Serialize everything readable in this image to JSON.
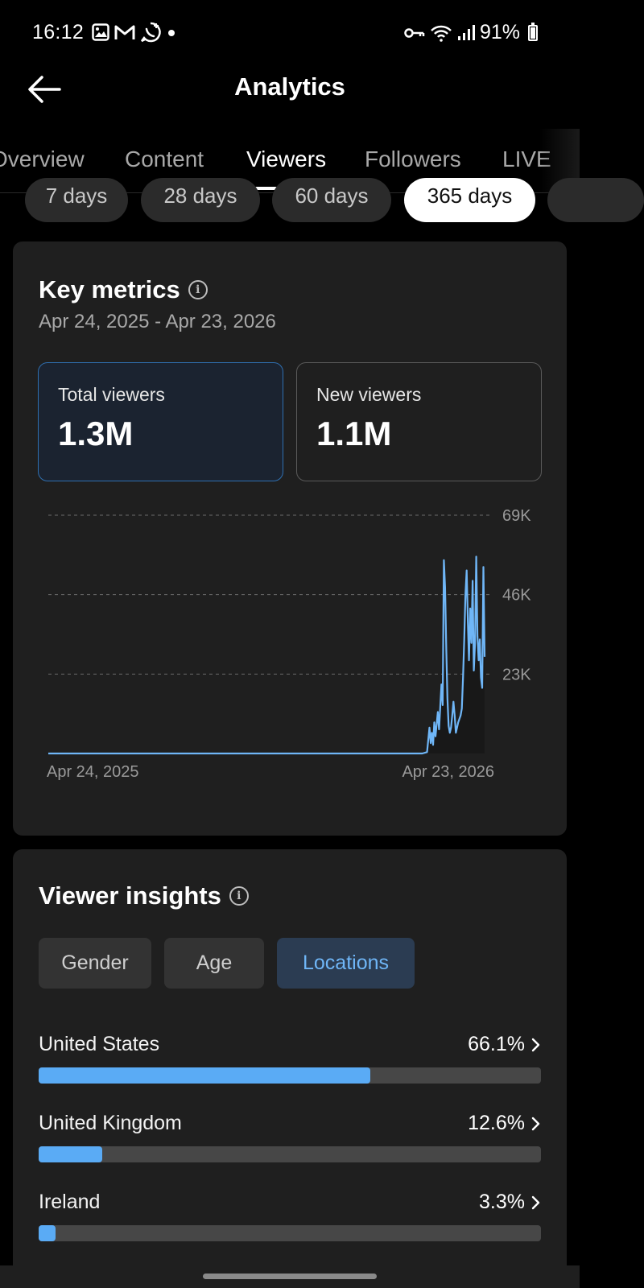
{
  "status_bar": {
    "time": "16:12",
    "battery": "91%",
    "icons_left": [
      "gallery-icon",
      "gmail-icon",
      "whatsapp-icon",
      "dot-icon"
    ],
    "icons_right": [
      "key-icon",
      "wifi-icon",
      "signal-icon",
      "battery-icon"
    ]
  },
  "header": {
    "title": "Analytics"
  },
  "tabs": [
    {
      "label": "Overview",
      "active": false
    },
    {
      "label": "Content",
      "active": false
    },
    {
      "label": "Viewers",
      "active": true
    },
    {
      "label": "Followers",
      "active": false
    },
    {
      "label": "LIVE",
      "active": false
    }
  ],
  "periods": [
    {
      "label": "7 days",
      "active": false
    },
    {
      "label": "28 days",
      "active": false
    },
    {
      "label": "60 days",
      "active": false
    },
    {
      "label": "365 days",
      "active": true
    }
  ],
  "key_metrics": {
    "title": "Key metrics",
    "date_range": "Apr 24, 2025 - Apr 23, 2026",
    "total_viewers": {
      "label": "Total viewers",
      "value": "1.3M"
    },
    "new_viewers": {
      "label": "New viewers",
      "value": "1.1M"
    }
  },
  "chart_data": {
    "type": "line",
    "title": "Total viewers",
    "x_start_label": "Apr 24, 2025",
    "x_end_label": "Apr 23, 2026",
    "y_ticks": [
      "69K",
      "46K",
      "23K"
    ],
    "ylim": [
      0,
      69000
    ],
    "x_unit": "day_index_of_365",
    "series": [
      {
        "name": "Total viewers",
        "points": [
          [
            0,
            0
          ],
          [
            312,
            0
          ],
          [
            316,
            400
          ],
          [
            318,
            7500
          ],
          [
            319,
            3000
          ],
          [
            320,
            6000
          ],
          [
            321,
            2500
          ],
          [
            322,
            9000
          ],
          [
            323,
            5000
          ],
          [
            325,
            12000
          ],
          [
            326,
            7000
          ],
          [
            328,
            20000
          ],
          [
            329,
            14000
          ],
          [
            330,
            56000
          ],
          [
            331,
            48000
          ],
          [
            332,
            30000
          ],
          [
            333,
            16000
          ],
          [
            334,
            8000
          ],
          [
            335,
            6000
          ],
          [
            336,
            7500
          ],
          [
            337,
            11000
          ],
          [
            338,
            15000
          ],
          [
            339,
            11000
          ],
          [
            340,
            6000
          ],
          [
            342,
            9000
          ],
          [
            344,
            11000
          ],
          [
            345,
            13000
          ],
          [
            346,
            22000
          ],
          [
            347,
            33000
          ],
          [
            348,
            46000
          ],
          [
            349,
            53000
          ],
          [
            350,
            38000
          ],
          [
            351,
            27000
          ],
          [
            352,
            42000
          ],
          [
            353,
            32000
          ],
          [
            354,
            50000
          ],
          [
            355,
            24000
          ],
          [
            356,
            32000
          ],
          [
            357,
            57000
          ],
          [
            358,
            34000
          ],
          [
            359,
            27000
          ],
          [
            360,
            33000
          ],
          [
            361,
            22000
          ],
          [
            362,
            19000
          ],
          [
            363,
            54000
          ],
          [
            364,
            28000
          ]
        ]
      }
    ],
    "color": "#6fb6f7"
  },
  "viewer_insights": {
    "title": "Viewer insights",
    "filters": [
      {
        "label": "Gender",
        "active": false
      },
      {
        "label": "Age",
        "active": false
      },
      {
        "label": "Locations",
        "active": true
      }
    ],
    "locations": [
      {
        "name": "United States",
        "percent_label": "66.1%",
        "value": 0.661
      },
      {
        "name": "United Kingdom",
        "percent_label": "12.6%",
        "value": 0.126
      },
      {
        "name": "Ireland",
        "percent_label": "3.3%",
        "value": 0.033
      }
    ]
  }
}
